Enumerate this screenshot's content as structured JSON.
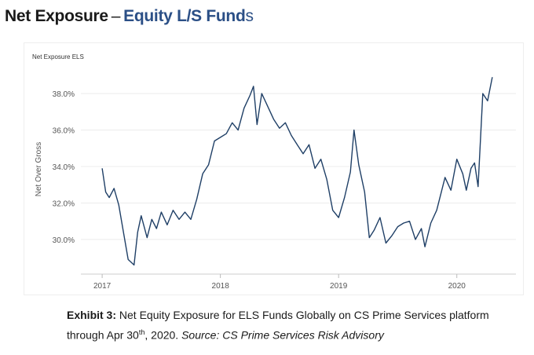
{
  "header": {
    "title_main": "Net Exposure",
    "title_dash": "–",
    "title_accent": "Equity L/S Fund",
    "title_tail": "s"
  },
  "caption": {
    "label": "Exhibit 3:",
    "text_before_sup": "Net Equity Exposure for ELS Funds Globally on CS Prime Services platform through Apr 30",
    "sup": "th",
    "text_after_sup": ", 2020.",
    "source": "Source: CS Prime Services Risk Advisory"
  },
  "chart_data": {
    "type": "line",
    "title": "Net Exposure ELS",
    "xlabel": "",
    "ylabel": "Net Over Gross",
    "xlim": [
      2016.82,
      2020.5
    ],
    "ylim": [
      28.1,
      39.6
    ],
    "x_ticks": [
      2017,
      2018,
      2019,
      2020
    ],
    "x_tick_labels": [
      "2017",
      "2018",
      "2019",
      "2020"
    ],
    "y_ticks": [
      30,
      32,
      34,
      36,
      38
    ],
    "y_tick_labels": [
      "30.0%",
      "32.0%",
      "34.0%",
      "36.0%",
      "38.0%"
    ],
    "grid": "horizontal",
    "color": "#1f3f66",
    "series": [
      {
        "name": "Net Exposure ELS",
        "x": [
          2017.0,
          2017.03,
          2017.06,
          2017.1,
          2017.14,
          2017.18,
          2017.22,
          2017.27,
          2017.3,
          2017.33,
          2017.38,
          2017.42,
          2017.46,
          2017.5,
          2017.55,
          2017.6,
          2017.65,
          2017.7,
          2017.75,
          2017.8,
          2017.85,
          2017.9,
          2017.95,
          2018.0,
          2018.05,
          2018.1,
          2018.15,
          2018.2,
          2018.25,
          2018.28,
          2018.31,
          2018.35,
          2018.4,
          2018.45,
          2018.5,
          2018.55,
          2018.6,
          2018.65,
          2018.7,
          2018.75,
          2018.8,
          2018.85,
          2018.9,
          2018.95,
          2019.0,
          2019.05,
          2019.1,
          2019.13,
          2019.17,
          2019.22,
          2019.26,
          2019.3,
          2019.35,
          2019.4,
          2019.45,
          2019.5,
          2019.55,
          2019.6,
          2019.65,
          2019.7,
          2019.73,
          2019.78,
          2019.83,
          2019.9,
          2019.95,
          2020.0,
          2020.05,
          2020.08,
          2020.12,
          2020.15,
          2020.18,
          2020.22,
          2020.26,
          2020.3
        ],
        "values": [
          33.9,
          32.6,
          32.3,
          32.8,
          31.9,
          30.4,
          28.9,
          28.6,
          30.4,
          31.3,
          30.1,
          31.1,
          30.6,
          31.5,
          30.8,
          31.6,
          31.1,
          31.5,
          31.1,
          32.2,
          33.6,
          34.1,
          35.4,
          35.6,
          35.8,
          36.4,
          36.0,
          37.2,
          37.9,
          38.4,
          36.3,
          38.0,
          37.3,
          36.6,
          36.1,
          36.4,
          35.7,
          35.2,
          34.7,
          35.2,
          33.9,
          34.4,
          33.3,
          31.6,
          31.2,
          32.3,
          33.7,
          36.0,
          34.1,
          32.6,
          30.1,
          30.5,
          31.2,
          29.8,
          30.2,
          30.7,
          30.9,
          31.0,
          30.0,
          30.6,
          29.6,
          30.9,
          31.6,
          33.4,
          32.7,
          34.4,
          33.6,
          32.7,
          33.9,
          34.2,
          32.9,
          38.0,
          37.6,
          38.9
        ]
      }
    ]
  }
}
